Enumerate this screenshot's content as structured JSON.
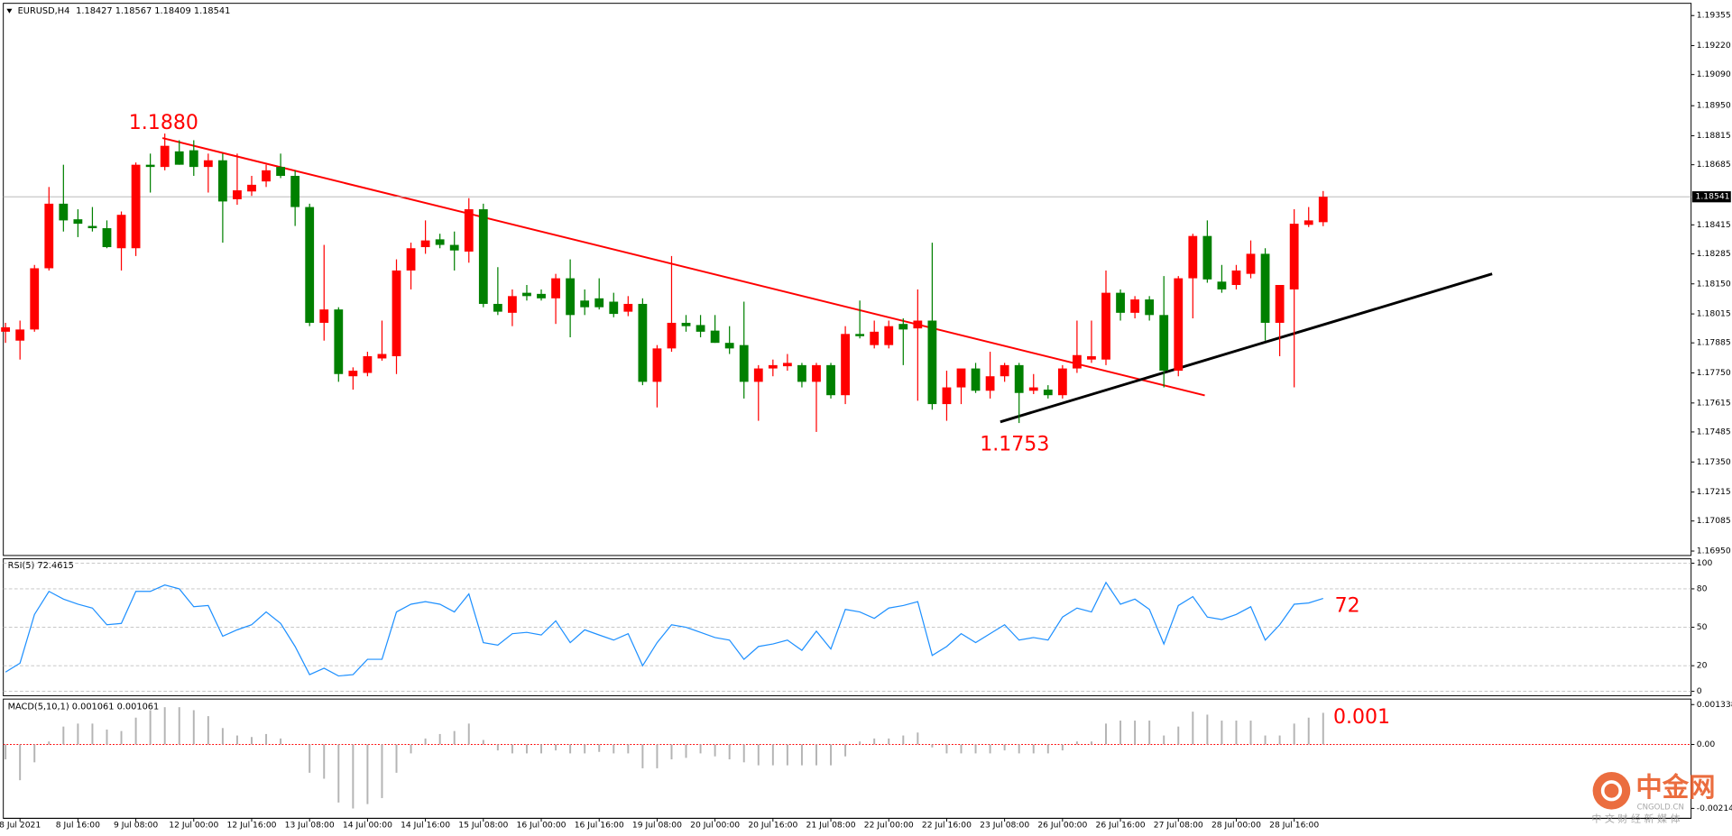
{
  "chart_data": [
    {
      "type": "candlestick",
      "title": "EURUSD,H4",
      "categories": [
        null,
        "8 Jul 2021",
        null,
        null,
        null,
        "8 Jul 16:00",
        null,
        null,
        null,
        "9 Jul 08:00",
        null,
        null,
        null,
        "12 Jul 00:00",
        null,
        null,
        null,
        "12 Jul 16:00",
        null,
        null,
        null,
        "13 Jul 08:00",
        null,
        null,
        null,
        "14 Jul 00:00",
        null,
        null,
        null,
        "14 Jul 16:00",
        null,
        null,
        null,
        "15 Jul 08:00",
        null,
        null,
        null,
        "16 Jul 00:00",
        null,
        null,
        null,
        "16 Jul 16:00",
        null,
        null,
        null,
        "19 Jul 08:00",
        null,
        null,
        null,
        "20 Jul 00:00",
        null,
        null,
        null,
        "20 Jul 16:00",
        null,
        null,
        null,
        "21 Jul 08:00",
        null,
        null,
        null,
        "22 Jul 00:00",
        null,
        null,
        null,
        "22 Jul 16:00",
        null,
        null,
        null,
        "23 Jul 08:00",
        null,
        null,
        null,
        "26 Jul 00:00",
        null,
        null,
        null,
        "26 Jul 16:00",
        null,
        null,
        null,
        "27 Jul 08:00",
        null,
        null,
        null,
        "28 Jul 00:00",
        null,
        null,
        null,
        "28 Jul 16:00",
        null,
        null
      ],
      "open": [
        1.17935,
        1.17895,
        1.17945,
        1.1822,
        1.1851,
        1.1844,
        1.1841,
        1.184,
        1.1831,
        1.1831,
        1.18685,
        1.18675,
        1.18745,
        1.1875,
        1.18675,
        1.18705,
        1.1853,
        1.18565,
        1.1861,
        1.18675,
        1.18635,
        1.18495,
        1.17975,
        1.18035,
        1.17735,
        1.1775,
        1.17815,
        1.17825,
        1.1821,
        1.18315,
        1.1835,
        1.18325,
        1.18295,
        1.18485,
        1.1806,
        1.1802,
        1.1811,
        1.18105,
        1.18085,
        1.18175,
        1.18075,
        1.18085,
        1.1807,
        1.18025,
        1.1806,
        1.1771,
        1.1786,
        1.17975,
        1.17965,
        1.1794,
        1.17885,
        1.17875,
        1.1771,
        1.1777,
        1.1778,
        1.17785,
        1.1771,
        1.17785,
        1.1765,
        1.17925,
        1.17875,
        1.17875,
        1.1797,
        1.1795,
        1.17985,
        1.1761,
        1.17685,
        1.1777,
        1.1767,
        1.17735,
        1.17785,
        1.1767,
        1.17675,
        1.1765,
        1.1777,
        1.1781,
        1.1781,
        1.1811,
        1.1802,
        1.1808,
        1.1801,
        1.1776,
        1.18175,
        1.18365,
        1.1816,
        1.18145,
        1.18195,
        1.18285,
        1.17975,
        1.18125,
        1.18415,
        1.18427
      ],
      "high": [
        1.17975,
        1.17985,
        1.18235,
        1.18585,
        1.18685,
        1.18485,
        1.18495,
        1.18435,
        1.18475,
        1.18695,
        1.18735,
        1.18825,
        1.18795,
        1.18795,
        1.18735,
        1.18735,
        1.18735,
        1.18635,
        1.18685,
        1.18735,
        1.1866,
        1.1851,
        1.18325,
        1.18045,
        1.17775,
        1.17845,
        1.17985,
        1.1826,
        1.18335,
        1.18435,
        1.18375,
        1.18385,
        1.18535,
        1.1851,
        1.18225,
        1.18125,
        1.18145,
        1.18125,
        1.18195,
        1.1826,
        1.18125,
        1.18175,
        1.1811,
        1.18095,
        1.18085,
        1.17875,
        1.18275,
        1.1801,
        1.1801,
        1.1801,
        1.1796,
        1.1807,
        1.17785,
        1.1781,
        1.17835,
        1.17795,
        1.17795,
        1.17795,
        1.1796,
        1.18075,
        1.17985,
        1.17985,
        1.17995,
        1.18125,
        1.18335,
        1.1776,
        1.1776,
        1.17795,
        1.17845,
        1.17795,
        1.17795,
        1.17745,
        1.17695,
        1.17785,
        1.17985,
        1.17985,
        1.1821,
        1.18125,
        1.18095,
        1.18095,
        1.18185,
        1.18185,
        1.18375,
        1.18435,
        1.18235,
        1.18235,
        1.18345,
        1.1831,
        1.18145,
        1.18485,
        1.18495,
        1.18567
      ],
      "low": [
        1.17885,
        1.1781,
        1.17935,
        1.1821,
        1.18385,
        1.1836,
        1.18385,
        1.1831,
        1.1821,
        1.18275,
        1.1856,
        1.1866,
        1.18685,
        1.18635,
        1.1856,
        1.18335,
        1.18505,
        1.18545,
        1.18585,
        1.18625,
        1.1841,
        1.1796,
        1.17895,
        1.1771,
        1.17675,
        1.17735,
        1.17805,
        1.17745,
        1.18125,
        1.18285,
        1.1831,
        1.1821,
        1.18245,
        1.18045,
        1.1801,
        1.1796,
        1.18075,
        1.18075,
        1.1797,
        1.1791,
        1.1801,
        1.18035,
        1.18,
        1.18005,
        1.17695,
        1.17595,
        1.17845,
        1.17935,
        1.1791,
        1.17885,
        1.17835,
        1.17635,
        1.17535,
        1.17735,
        1.1776,
        1.17685,
        1.17485,
        1.17635,
        1.1761,
        1.17905,
        1.1786,
        1.1786,
        1.17785,
        1.17625,
        1.17585,
        1.17535,
        1.1761,
        1.1766,
        1.17635,
        1.1771,
        1.17525,
        1.17655,
        1.17635,
        1.17635,
        1.1775,
        1.17795,
        1.17785,
        1.17985,
        1.17995,
        1.17985,
        1.17685,
        1.17735,
        1.17995,
        1.18155,
        1.1811,
        1.18125,
        1.18175,
        1.17895,
        1.17825,
        1.17685,
        1.18405,
        1.18409
      ],
      "close": [
        1.17955,
        1.17945,
        1.1822,
        1.1851,
        1.18435,
        1.1842,
        1.184,
        1.18315,
        1.1846,
        1.18685,
        1.18675,
        1.1877,
        1.18685,
        1.18675,
        1.18705,
        1.1852,
        1.1857,
        1.18595,
        1.1866,
        1.18635,
        1.18495,
        1.17975,
        1.18035,
        1.17745,
        1.1776,
        1.17825,
        1.17835,
        1.1821,
        1.1831,
        1.18345,
        1.18325,
        1.183,
        1.18485,
        1.1806,
        1.18025,
        1.18095,
        1.18095,
        1.18085,
        1.18175,
        1.1801,
        1.18045,
        1.18045,
        1.18015,
        1.1806,
        1.1771,
        1.1786,
        1.17975,
        1.1796,
        1.17935,
        1.17885,
        1.1786,
        1.1771,
        1.1777,
        1.17785,
        1.17795,
        1.1771,
        1.17785,
        1.1765,
        1.17925,
        1.17915,
        1.17935,
        1.1796,
        1.17945,
        1.17985,
        1.1761,
        1.17685,
        1.1777,
        1.1767,
        1.17735,
        1.17785,
        1.1766,
        1.17685,
        1.1765,
        1.1777,
        1.1783,
        1.17825,
        1.1811,
        1.1802,
        1.1808,
        1.1801,
        1.1776,
        1.18175,
        1.18365,
        1.1817,
        1.18125,
        1.1821,
        1.18285,
        1.17975,
        1.18145,
        1.1842,
        1.18435,
        1.18541
      ],
      "up_color": "#ff0000",
      "down_color": "#008000",
      "ylim": [
        1.16935,
        1.19405
      ],
      "yticks": [
        1.19355,
        {
          "value": 1.1922,
          "label": "1.19220"
        },
        {
          "value": 1.1909,
          "label": "1.19090"
        },
        {
          "value": 1.1895,
          "label": "1.18950"
        },
        1.18815,
        1.18685,
        1.18415,
        1.18285,
        {
          "value": 1.1815,
          "label": "1.18150"
        },
        1.18015,
        1.17885,
        {
          "value": 1.1775,
          "label": "1.17750"
        },
        1.17615,
        1.17485,
        {
          "value": 1.1735,
          "label": "1.17350"
        },
        1.17215,
        1.17085,
        {
          "value": 1.1695,
          "label": "1.16950"
        }
      ],
      "annotations": [
        "1.1880",
        "1.1753"
      ]
    },
    {
      "type": "line",
      "title": "RSI(5)",
      "color": "#1e90ff",
      "values": [
        15,
        22,
        60,
        78,
        72,
        68,
        65,
        52,
        53,
        78,
        78,
        83,
        80,
        66,
        67,
        43,
        48,
        52,
        62,
        53,
        35,
        13,
        18,
        12,
        13,
        25,
        25,
        62,
        68,
        70,
        68,
        62,
        76,
        38,
        36,
        45,
        46,
        44,
        55,
        38,
        48,
        44,
        40,
        45,
        20,
        38,
        52,
        50,
        46,
        42,
        40,
        25,
        35,
        37,
        40,
        32,
        47,
        33,
        64,
        62,
        57,
        65,
        67,
        70,
        28,
        35,
        45,
        38,
        45,
        52,
        40,
        42,
        40,
        58,
        65,
        62,
        85,
        68,
        72,
        64,
        37,
        67,
        74,
        58,
        56,
        60,
        66,
        40,
        52,
        68,
        69,
        72.4615
      ],
      "ylim": [
        0,
        100
      ],
      "yticks": [
        100,
        80,
        50,
        20,
        0
      ],
      "grid": true,
      "annotation": "72"
    },
    {
      "type": "bar",
      "title": "MACD(5,10,1)",
      "color": "#b4b4b4",
      "zero_line_color": "#ff0000",
      "values": [
        -0.0005,
        -0.0012,
        -0.0006,
        0.0001,
        0.0006,
        0.0007,
        0.0007,
        0.0005,
        0.00045,
        0.0009,
        0.00115,
        0.00125,
        0.00125,
        0.00115,
        0.00095,
        0.00055,
        0.0003,
        0.00025,
        0.00035,
        0.0002,
        0,
        -0.00095,
        -0.00115,
        -0.00195,
        -0.00215,
        -0.002,
        -0.0018,
        -0.00095,
        -0.0003,
        0.0002,
        0.00035,
        0.00045,
        0.0007,
        0.00015,
        -0.0002,
        -0.0003,
        -0.0003,
        -0.0003,
        -0.0002,
        -0.0003,
        -0.0003,
        -0.00025,
        -0.0003,
        -0.0003,
        -0.0008,
        -0.0008,
        -0.0005,
        -0.00045,
        -0.0003,
        -0.0004,
        -0.0005,
        -0.0006,
        -0.0007,
        -0.0007,
        -0.0007,
        -0.0007,
        -0.0007,
        -0.0007,
        -0.0004,
        0.0001,
        0.0002,
        0.0002,
        0.0003,
        0.0004,
        -0.0001,
        -0.0003,
        -0.0003,
        -0.0003,
        -0.0003,
        -0.0002,
        -0.0003,
        -0.0003,
        -0.0003,
        -0.0002,
        0.0001,
        0.0001,
        0.0007,
        0.0008,
        0.0008,
        0.0008,
        0.0003,
        0.0006,
        0.0011,
        0.001,
        0.0008,
        0.0008,
        0.0008,
        0.0003,
        0.0003,
        0.0007,
        0.0009,
        0.001061
      ],
      "ylim": [
        -0.002516,
        0.001523
      ],
      "yticks": [
        0.001338,
        {
          "value": 0,
          "label": "0.00"
        },
        -0.002146
      ],
      "annotation": "0.001"
    }
  ],
  "watermark": {
    "name": "中金网",
    "domain": "CNGOLD.CN",
    "tagline": "中 文 财 经 新 媒 体"
  }
}
